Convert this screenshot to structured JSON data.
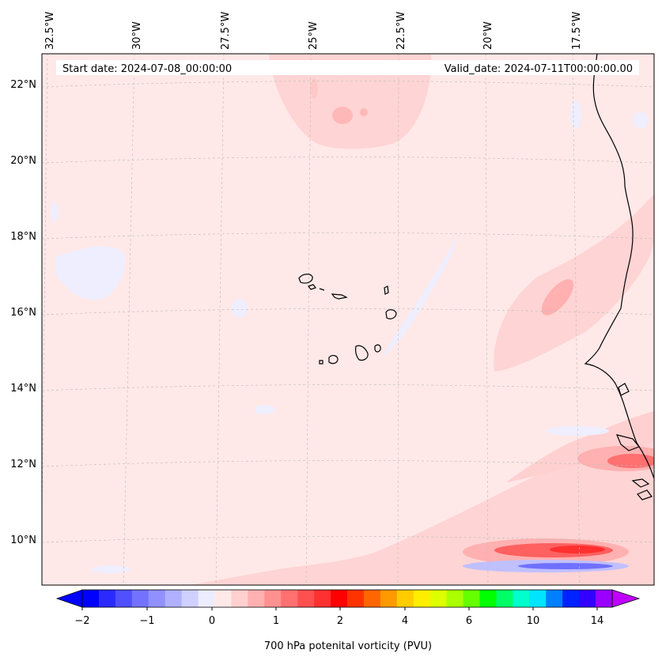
{
  "header": {
    "start_date": "Start date: 2024-07-08_00:00:00",
    "valid_date": "Valid_date: 2024-07-11T00:00:00.00"
  },
  "axes": {
    "lon_labels": [
      "32.5°W",
      "30°W",
      "27.5°W",
      "25°W",
      "22.5°W",
      "20°W",
      "17.5°W"
    ],
    "lat_labels": [
      "22°N",
      "20°N",
      "18°N",
      "16°N",
      "14°N",
      "12°N",
      "10°N"
    ]
  },
  "colorbar": {
    "title": "700 hPa potenital vorticity (PVU)",
    "tick_labels": [
      "−2",
      "−1",
      "0",
      "1",
      "2",
      "4",
      "6",
      "10",
      "14"
    ],
    "colors": [
      "#0000ff",
      "#2a2aff",
      "#5050ff",
      "#7272ff",
      "#9090ff",
      "#b0b0ff",
      "#d0d0ff",
      "#ececff",
      "#ffe8e8",
      "#ffd0d0",
      "#ffb0b0",
      "#ff9090",
      "#ff7070",
      "#ff5050",
      "#ff3030",
      "#ff0000",
      "#ff3300",
      "#ff6600",
      "#ff9900",
      "#ffcc00",
      "#ffee00",
      "#ddff00",
      "#aaff00",
      "#66ff00",
      "#00ff00",
      "#00ff66",
      "#00ffcc",
      "#00e5ff",
      "#0080ff",
      "#0022ff",
      "#3300ff",
      "#9900ff"
    ],
    "under_color": "#0000ff",
    "over_color": "#c000ff"
  },
  "chart_data": {
    "type": "filled-contour map",
    "variable": "700 hPa potential vorticity",
    "units": "PVU",
    "lon_range": [
      -33,
      -15
    ],
    "lat_range": [
      9,
      22.8
    ],
    "levels": [
      -2,
      -1,
      0,
      1,
      2,
      4,
      6,
      10,
      14
    ],
    "features": [
      "Cape Verde islands",
      "West African coastline"
    ]
  }
}
